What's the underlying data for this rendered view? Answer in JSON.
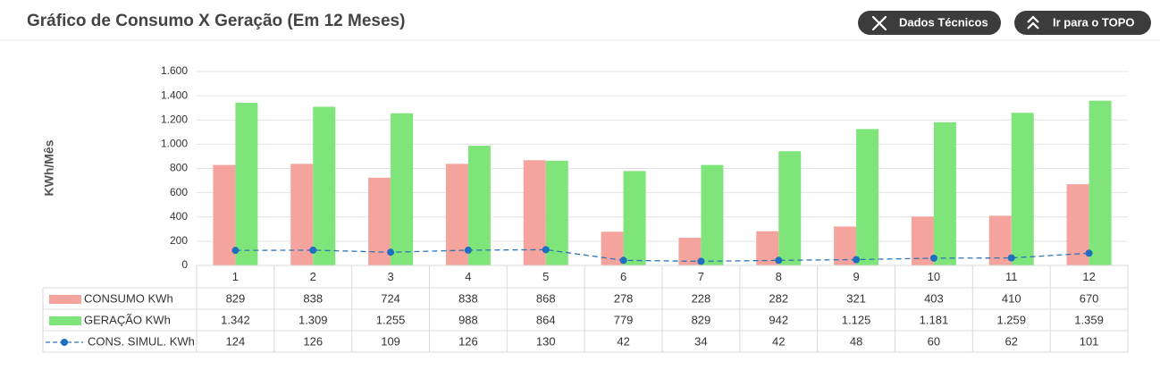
{
  "toolbar": {
    "buttons": [
      "Dados Técnicos",
      "Ir para o TOPO"
    ]
  },
  "chart_data": {
    "type": "bar",
    "title": "Gráfico de Consumo X Geração (Em 12 Meses)",
    "y_label": "KWh/Mês",
    "categories": [
      "1",
      "2",
      "3",
      "4",
      "5",
      "6",
      "7",
      "8",
      "9",
      "10",
      "11",
      "12"
    ],
    "series": [
      {
        "name": "CONSUMO KWh",
        "type": "bar",
        "color": "#f4a39d",
        "values": [
          829,
          838,
          724,
          838,
          868,
          278,
          228,
          282,
          321,
          403,
          410,
          670
        ]
      },
      {
        "name": "GERAÇÃO KWh",
        "type": "bar",
        "color": "#7fe57b",
        "values": [
          1342,
          1309,
          1255,
          988,
          864,
          779,
          829,
          942,
          1125,
          1181,
          1259,
          1359
        ],
        "value_labels": [
          "1.342",
          "1.309",
          "1.255",
          "988",
          "864",
          "779",
          "829",
          "942",
          "1.125",
          "1.181",
          "1.259",
          "1.359"
        ]
      },
      {
        "name": "CONS. SIMUL. KWh",
        "type": "line",
        "color": "#2e75b6",
        "values": [
          124,
          126,
          109,
          126,
          130,
          42,
          34,
          42,
          48,
          60,
          62,
          101
        ]
      }
    ],
    "ylim": [
      0,
      1600
    ],
    "yticks": [
      0,
      200,
      400,
      600,
      800,
      {
        "value": 1000,
        "label": "1.000"
      },
      {
        "value": 1200,
        "label": "1.200"
      },
      {
        "value": 1400,
        "label": "1.400"
      },
      {
        "value": 1600,
        "label": "1.600"
      }
    ],
    "grid": true
  }
}
